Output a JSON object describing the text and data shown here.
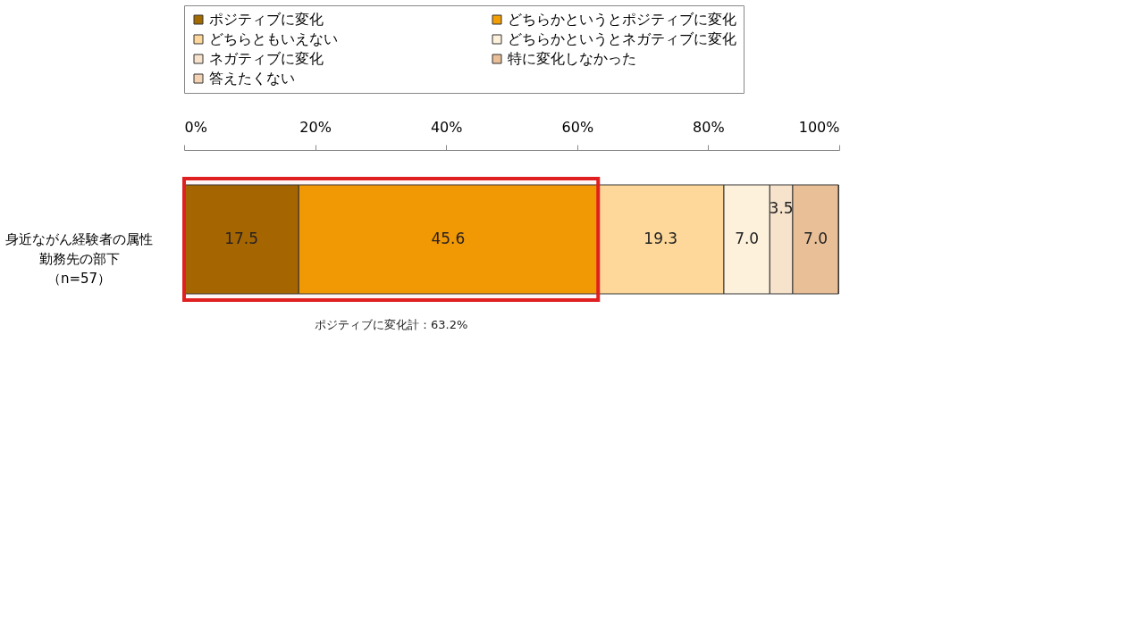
{
  "chart_data": {
    "type": "bar",
    "orientation": "horizontal",
    "stacked": true,
    "categories": [
      "身近ながん経験者の属性勤務先の部下（n=57）"
    ],
    "series": [
      {
        "name": "ポジティブに変化",
        "color": "#a36a00",
        "values": [
          17.5
        ],
        "value_labels": [
          "17.5"
        ]
      },
      {
        "name": "どちらかというとポジティブに変化",
        "color": "#f29f05",
        "values": [
          45.6
        ],
        "value_labels": [
          "45.6"
        ]
      },
      {
        "name": "どちらともいえない",
        "color": "#fdd89a",
        "values": [
          19.3
        ],
        "value_labels": [
          "19.3"
        ]
      },
      {
        "name": "どちらかというとネガティブに変化",
        "color": "#fdf1dc",
        "values": [
          7.0
        ],
        "value_labels": [
          "7.0"
        ]
      },
      {
        "name": "ネガティブに変化",
        "color": "#f7e3cc",
        "values": [
          3.5
        ],
        "value_labels": [
          "3.5"
        ]
      },
      {
        "name": "特に変化しなかった",
        "color": "#e9bf98",
        "values": [
          7.0
        ],
        "value_labels": [
          "7.0"
        ]
      },
      {
        "name": "答えたくない",
        "color": "#f3d3b4",
        "values": [
          0
        ],
        "value_labels": [
          null
        ]
      }
    ],
    "xlim": [
      0,
      100
    ],
    "xticks": [
      {
        "value": 0,
        "label": "0%"
      },
      {
        "value": 20,
        "label": "20%"
      },
      {
        "value": 40,
        "label": "40%"
      },
      {
        "value": 60,
        "label": "60%"
      },
      {
        "value": 80,
        "label": "80%"
      },
      {
        "value": 100,
        "label": "100%"
      }
    ],
    "bands": [
      {
        "axis": "x",
        "from": 0,
        "to": 63.2,
        "label": "ポジティブに変化計：63.2%",
        "color": "#e02020"
      }
    ],
    "legend": "top",
    "grid": false
  }
}
